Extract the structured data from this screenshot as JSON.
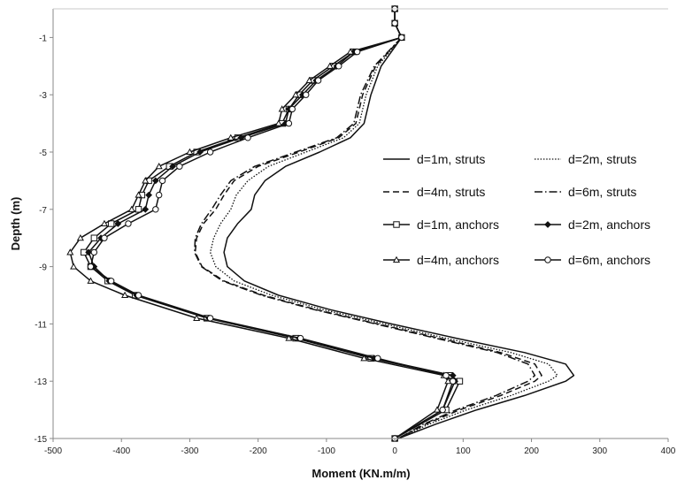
{
  "chart_data": {
    "type": "line",
    "title": "",
    "xlabel": "Moment (KN.m/m)",
    "ylabel": "Depth (m)",
    "xlim": [
      -500,
      400
    ],
    "ylim": [
      -15,
      0
    ],
    "x_ticks": [
      "-500",
      "-400",
      "-300",
      "-200",
      "-100",
      "0",
      "100",
      "200",
      "300",
      "400"
    ],
    "y_ticks": [
      "-1",
      "-3",
      "-5",
      "-7",
      "-9",
      "-11",
      "-13",
      "-15"
    ],
    "grid": false,
    "legend_position": "right",
    "series": [
      {
        "name": "d=1m, struts",
        "line": "solid",
        "marker": "none",
        "points": [
          [
            10,
            -1
          ],
          [
            -20,
            -2
          ],
          [
            -35,
            -3
          ],
          [
            -45,
            -4
          ],
          [
            -65,
            -4.5
          ],
          [
            -110,
            -5
          ],
          [
            -160,
            -5.5
          ],
          [
            -190,
            -6
          ],
          [
            -205,
            -6.5
          ],
          [
            -210,
            -7
          ],
          [
            -230,
            -7.5
          ],
          [
            -245,
            -8
          ],
          [
            -250,
            -8.5
          ],
          [
            -245,
            -9
          ],
          [
            -220,
            -9.5
          ],
          [
            -170,
            -10
          ],
          [
            -95,
            -10.5
          ],
          [
            -5,
            -11
          ],
          [
            90,
            -11.5
          ],
          [
            190,
            -12
          ],
          [
            250,
            -12.4
          ],
          [
            262,
            -12.8
          ],
          [
            250,
            -13
          ],
          [
            190,
            -13.5
          ],
          [
            120,
            -14
          ],
          [
            60,
            -14.5
          ],
          [
            5,
            -15
          ]
        ]
      },
      {
        "name": "d=2m, struts",
        "line": "dotted",
        "marker": "none",
        "points": [
          [
            10,
            -1
          ],
          [
            -25,
            -2
          ],
          [
            -42,
            -3
          ],
          [
            -52,
            -4
          ],
          [
            -75,
            -4.5
          ],
          [
            -130,
            -5
          ],
          [
            -185,
            -5.5
          ],
          [
            -215,
            -6
          ],
          [
            -232,
            -6.5
          ],
          [
            -240,
            -7
          ],
          [
            -255,
            -7.5
          ],
          [
            -265,
            -8
          ],
          [
            -270,
            -8.5
          ],
          [
            -262,
            -9
          ],
          [
            -235,
            -9.5
          ],
          [
            -180,
            -10
          ],
          [
            -105,
            -10.5
          ],
          [
            -15,
            -11
          ],
          [
            75,
            -11.5
          ],
          [
            170,
            -12
          ],
          [
            225,
            -12.4
          ],
          [
            238,
            -12.8
          ],
          [
            225,
            -13
          ],
          [
            170,
            -13.5
          ],
          [
            105,
            -14
          ],
          [
            50,
            -14.5
          ],
          [
            5,
            -15
          ]
        ]
      },
      {
        "name": "d=4m, struts",
        "line": "dashed",
        "marker": "none",
        "points": [
          [
            10,
            -1
          ],
          [
            -28,
            -2
          ],
          [
            -47,
            -3
          ],
          [
            -57,
            -4
          ],
          [
            -82,
            -4.5
          ],
          [
            -140,
            -5
          ],
          [
            -200,
            -5.5
          ],
          [
            -235,
            -6
          ],
          [
            -250,
            -6.5
          ],
          [
            -262,
            -7
          ],
          [
            -280,
            -7.5
          ],
          [
            -290,
            -8
          ],
          [
            -292,
            -8.5
          ],
          [
            -282,
            -9
          ],
          [
            -250,
            -9.5
          ],
          [
            -192,
            -10
          ],
          [
            -115,
            -10.5
          ],
          [
            -25,
            -11
          ],
          [
            65,
            -11.5
          ],
          [
            155,
            -12
          ],
          [
            205,
            -12.4
          ],
          [
            215,
            -12.8
          ],
          [
            205,
            -13
          ],
          [
            155,
            -13.5
          ],
          [
            95,
            -14
          ],
          [
            45,
            -14.5
          ],
          [
            5,
            -15
          ]
        ]
      },
      {
        "name": "d=6m, struts",
        "line": "dashdot",
        "marker": "none",
        "points": [
          [
            10,
            -1
          ],
          [
            -30,
            -2
          ],
          [
            -50,
            -3
          ],
          [
            -60,
            -4
          ],
          [
            -85,
            -4.5
          ],
          [
            -145,
            -5
          ],
          [
            -205,
            -5.5
          ],
          [
            -240,
            -6
          ],
          [
            -255,
            -6.5
          ],
          [
            -268,
            -7
          ],
          [
            -283,
            -7.5
          ],
          [
            -292,
            -8
          ],
          [
            -293,
            -8.5
          ],
          [
            -283,
            -9
          ],
          [
            -252,
            -9.5
          ],
          [
            -195,
            -10
          ],
          [
            -118,
            -10.5
          ],
          [
            -28,
            -11
          ],
          [
            60,
            -11.5
          ],
          [
            150,
            -12
          ],
          [
            195,
            -12.4
          ],
          [
            205,
            -12.8
          ],
          [
            195,
            -13
          ],
          [
            148,
            -13.5
          ],
          [
            90,
            -14
          ],
          [
            42,
            -14.5
          ],
          [
            5,
            -15
          ]
        ]
      },
      {
        "name": "d=1m, anchors",
        "line": "solid",
        "marker": "square",
        "points": [
          [
            0,
            0
          ],
          [
            0,
            -0.5
          ],
          [
            10,
            -1
          ],
          [
            -60,
            -1.5
          ],
          [
            -90,
            -2
          ],
          [
            -120,
            -2.5
          ],
          [
            -140,
            -3
          ],
          [
            -155,
            -3.5
          ],
          [
            -165,
            -4
          ],
          [
            -230,
            -4.5
          ],
          [
            -290,
            -5
          ],
          [
            -330,
            -5.5
          ],
          [
            -360,
            -6
          ],
          [
            -370,
            -6.5
          ],
          [
            -375,
            -7
          ],
          [
            -415,
            -7.5
          ],
          [
            -440,
            -8
          ],
          [
            -455,
            -8.5
          ],
          [
            -445,
            -9
          ],
          [
            -420,
            -9.5
          ],
          [
            -380,
            -10
          ],
          [
            -275,
            -10.8
          ],
          [
            -145,
            -11.5
          ],
          [
            -35,
            -12.2
          ],
          [
            80,
            -12.8
          ],
          [
            95,
            -13
          ],
          [
            75,
            -14
          ],
          [
            0,
            -15
          ]
        ]
      },
      {
        "name": "d=2m, anchors",
        "line": "solid",
        "marker": "diamond",
        "points": [
          [
            0,
            0
          ],
          [
            0,
            -0.5
          ],
          [
            10,
            -1
          ],
          [
            -60,
            -1.5
          ],
          [
            -85,
            -2
          ],
          [
            -115,
            -2.5
          ],
          [
            -135,
            -3
          ],
          [
            -155,
            -3.5
          ],
          [
            -160,
            -4
          ],
          [
            -225,
            -4.5
          ],
          [
            -285,
            -5
          ],
          [
            -325,
            -5.5
          ],
          [
            -350,
            -6
          ],
          [
            -360,
            -6.5
          ],
          [
            -365,
            -7
          ],
          [
            -405,
            -7.5
          ],
          [
            -430,
            -8
          ],
          [
            -448,
            -8.5
          ],
          [
            -440,
            -9
          ],
          [
            -418,
            -9.5
          ],
          [
            -378,
            -10
          ],
          [
            -272,
            -10.8
          ],
          [
            -140,
            -11.5
          ],
          [
            -30,
            -12.2
          ],
          [
            85,
            -12.8
          ],
          [
            88,
            -13
          ],
          [
            70,
            -14
          ],
          [
            0,
            -15
          ]
        ]
      },
      {
        "name": "d=4m, anchors",
        "line": "solid",
        "marker": "triangle",
        "points": [
          [
            0,
            0
          ],
          [
            0,
            -0.5
          ],
          [
            10,
            -1
          ],
          [
            -65,
            -1.5
          ],
          [
            -95,
            -2
          ],
          [
            -125,
            -2.5
          ],
          [
            -145,
            -3
          ],
          [
            -165,
            -3.5
          ],
          [
            -170,
            -4
          ],
          [
            -240,
            -4.5
          ],
          [
            -300,
            -5
          ],
          [
            -345,
            -5.5
          ],
          [
            -365,
            -6
          ],
          [
            -375,
            -6.5
          ],
          [
            -385,
            -7
          ],
          [
            -425,
            -7.5
          ],
          [
            -460,
            -8
          ],
          [
            -475,
            -8.5
          ],
          [
            -470,
            -9
          ],
          [
            -445,
            -9.5
          ],
          [
            -395,
            -10
          ],
          [
            -290,
            -10.8
          ],
          [
            -155,
            -11.5
          ],
          [
            -45,
            -12.2
          ],
          [
            72,
            -12.8
          ],
          [
            78,
            -13
          ],
          [
            62,
            -14
          ],
          [
            0,
            -15
          ]
        ]
      },
      {
        "name": "d=6m, anchors",
        "line": "solid",
        "marker": "circle",
        "points": [
          [
            0,
            0
          ],
          [
            0,
            -0.5
          ],
          [
            10,
            -1
          ],
          [
            -55,
            -1.5
          ],
          [
            -82,
            -2
          ],
          [
            -112,
            -2.5
          ],
          [
            -130,
            -3
          ],
          [
            -150,
            -3.5
          ],
          [
            -155,
            -4
          ],
          [
            -215,
            -4.5
          ],
          [
            -270,
            -5
          ],
          [
            -315,
            -5.5
          ],
          [
            -340,
            -6
          ],
          [
            -345,
            -6.5
          ],
          [
            -350,
            -7
          ],
          [
            -390,
            -7.5
          ],
          [
            -425,
            -8
          ],
          [
            -440,
            -8.5
          ],
          [
            -445,
            -9
          ],
          [
            -415,
            -9.5
          ],
          [
            -375,
            -10
          ],
          [
            -270,
            -10.8
          ],
          [
            -138,
            -11.5
          ],
          [
            -25,
            -12.2
          ],
          [
            75,
            -12.8
          ],
          [
            85,
            -13
          ],
          [
            70,
            -14
          ],
          [
            0,
            -15
          ]
        ]
      }
    ]
  }
}
